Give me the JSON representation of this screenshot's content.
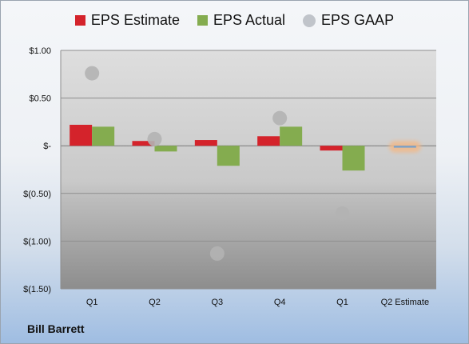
{
  "company": "Bill Barrett",
  "colors": {
    "estimate": "#d4232b",
    "actual": "#84ac4f",
    "gaap": "#b3b3b3",
    "forecast": "#f0b98a"
  },
  "legend": [
    {
      "label": "EPS Estimate",
      "marker": "square",
      "color": "#d4232b"
    },
    {
      "label": "EPS Actual",
      "marker": "square",
      "color": "#84ac4f"
    },
    {
      "label": "EPS GAAP",
      "marker": "circle",
      "color": "#c0c4ca"
    }
  ],
  "chart_data": {
    "type": "bar",
    "categories": [
      "Q1",
      "Q2",
      "Q3",
      "Q4",
      "Q1",
      "Q2 Estimate"
    ],
    "ylim": [
      -1.5,
      1.0
    ],
    "yticks": [
      {
        "value": 1.0,
        "label": "$1.00"
      },
      {
        "value": 0.5,
        "label": "$0.50"
      },
      {
        "value": 0,
        "label": "$-"
      },
      {
        "value": -0.5,
        "label": "$(0.50)"
      },
      {
        "value": -1.0,
        "label": "$(1.00)"
      },
      {
        "value": -1.5,
        "label": "$(1.50)"
      }
    ],
    "grid": true,
    "legend_position": "top",
    "series": [
      {
        "name": "EPS Estimate",
        "type": "bar",
        "values": [
          0.22,
          0.05,
          0.06,
          0.1,
          -0.05,
          -0.02
        ]
      },
      {
        "name": "EPS Actual",
        "type": "bar",
        "values": [
          0.2,
          -0.06,
          -0.21,
          0.2,
          -0.26,
          null
        ]
      },
      {
        "name": "EPS GAAP",
        "type": "scatter",
        "values": [
          0.76,
          0.07,
          -1.13,
          0.29,
          -0.71,
          null
        ]
      }
    ]
  }
}
